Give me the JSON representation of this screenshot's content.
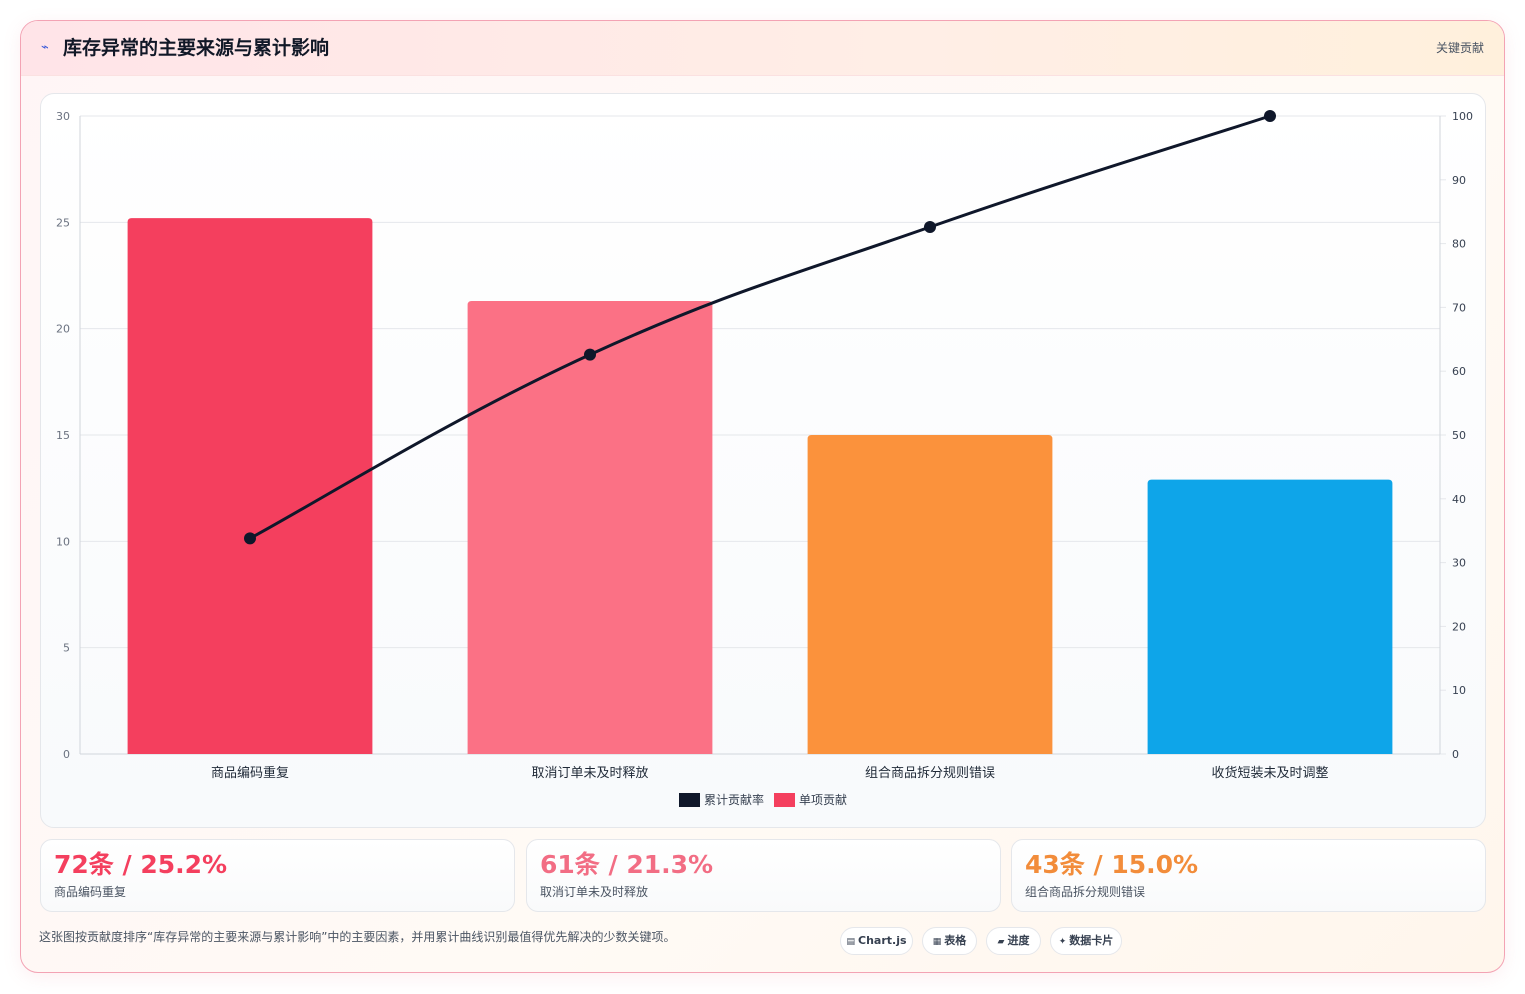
{
  "header": {
    "title": "库存异常的主要来源与累计影响",
    "badge": "关键贡献",
    "icon": "trend-icon"
  },
  "chart_data": {
    "type": "bar",
    "categories": [
      "商品编码重复",
      "取消订单未及时释放",
      "组合商品拆分规则错误",
      "收货短装未及时调整"
    ],
    "series": [
      {
        "name": "单项贡献",
        "type": "bar",
        "axis": "left",
        "values": [
          25.2,
          21.3,
          15.0,
          12.9
        ],
        "colors": [
          "#f43f5e",
          "#fb7185",
          "#fb923c",
          "#0ea5e9"
        ]
      },
      {
        "name": "累计贡献率",
        "type": "line",
        "axis": "right",
        "values": [
          33.8,
          62.6,
          82.6,
          100
        ],
        "color": "#0f172a"
      }
    ],
    "y_left": {
      "min": 0,
      "max": 30,
      "ticks": [
        "0",
        "5",
        "10",
        "15",
        "20",
        "25",
        "30"
      ]
    },
    "y_right": {
      "min": 0,
      "max": 100,
      "ticks": [
        "0",
        "10",
        "20",
        "30",
        "40",
        "50",
        "60",
        "70",
        "80",
        "90",
        "100"
      ]
    },
    "legend": [
      {
        "label": "累计贡献率",
        "color": "#0f172a"
      },
      {
        "label": "单项贡献",
        "color": "#f43f5e"
      }
    ],
    "legend_position": "bottom",
    "grid": true
  },
  "stats": [
    {
      "value": "72条 / 25.2%",
      "label": "商品编码重复",
      "color": "#f43f5e"
    },
    {
      "value": "61条 / 21.3%",
      "label": "取消订单未及时释放",
      "color": "#f26d84"
    },
    {
      "value": "43条 / 15.0%",
      "label": "组合商品拆分规则错误",
      "color": "#f28c3a"
    }
  ],
  "footer": {
    "text": "这张图按贡献度排序“库存异常的主要来源与累计影响”中的主要因素，并用累计曲线识别最值得优先解决的少数关键项。",
    "chips": [
      {
        "icon": "chart-icon",
        "label": "Chart.js"
      },
      {
        "icon": "table-icon",
        "label": "表格"
      },
      {
        "icon": "progress-icon",
        "label": "进度"
      },
      {
        "icon": "card-icon",
        "label": "数据卡片"
      }
    ]
  }
}
